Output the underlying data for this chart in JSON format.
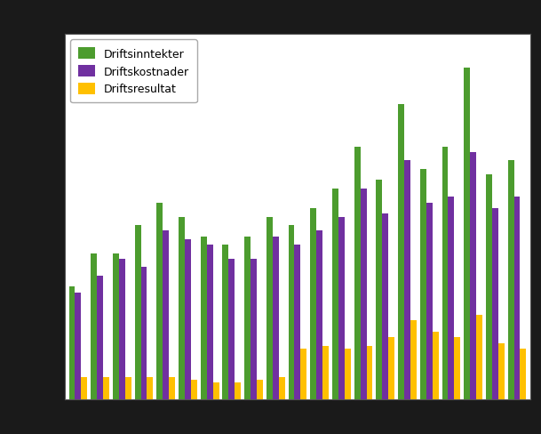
{
  "n_groups": 21,
  "driftsinntekter": [
    40,
    52,
    52,
    62,
    70,
    65,
    58,
    55,
    58,
    65,
    62,
    68,
    75,
    90,
    78,
    105,
    82,
    90,
    118,
    80,
    85
  ],
  "driftskostnader": [
    38,
    44,
    50,
    47,
    60,
    57,
    55,
    50,
    50,
    58,
    55,
    60,
    65,
    75,
    66,
    85,
    70,
    72,
    88,
    68,
    72
  ],
  "driftsresultat": [
    8,
    8,
    8,
    8,
    8,
    7,
    6,
    6,
    7,
    8,
    18,
    19,
    18,
    19,
    22,
    28,
    24,
    22,
    30,
    20,
    18
  ],
  "color_inntekter": "#4c9c2e",
  "color_kostnader": "#7030a0",
  "color_resultat": "#ffc000",
  "background_color": "#ffffff",
  "outer_background": "#000000",
  "grid_color": "#cccccc",
  "ylim": [
    0,
    130
  ],
  "legend_labels": [
    "Driftsinntekter",
    "Driftskostnader",
    "Driftsresultat"
  ],
  "bar_width": 0.28,
  "figsize": [
    6.09,
    4.89
  ],
  "dpi": 100
}
